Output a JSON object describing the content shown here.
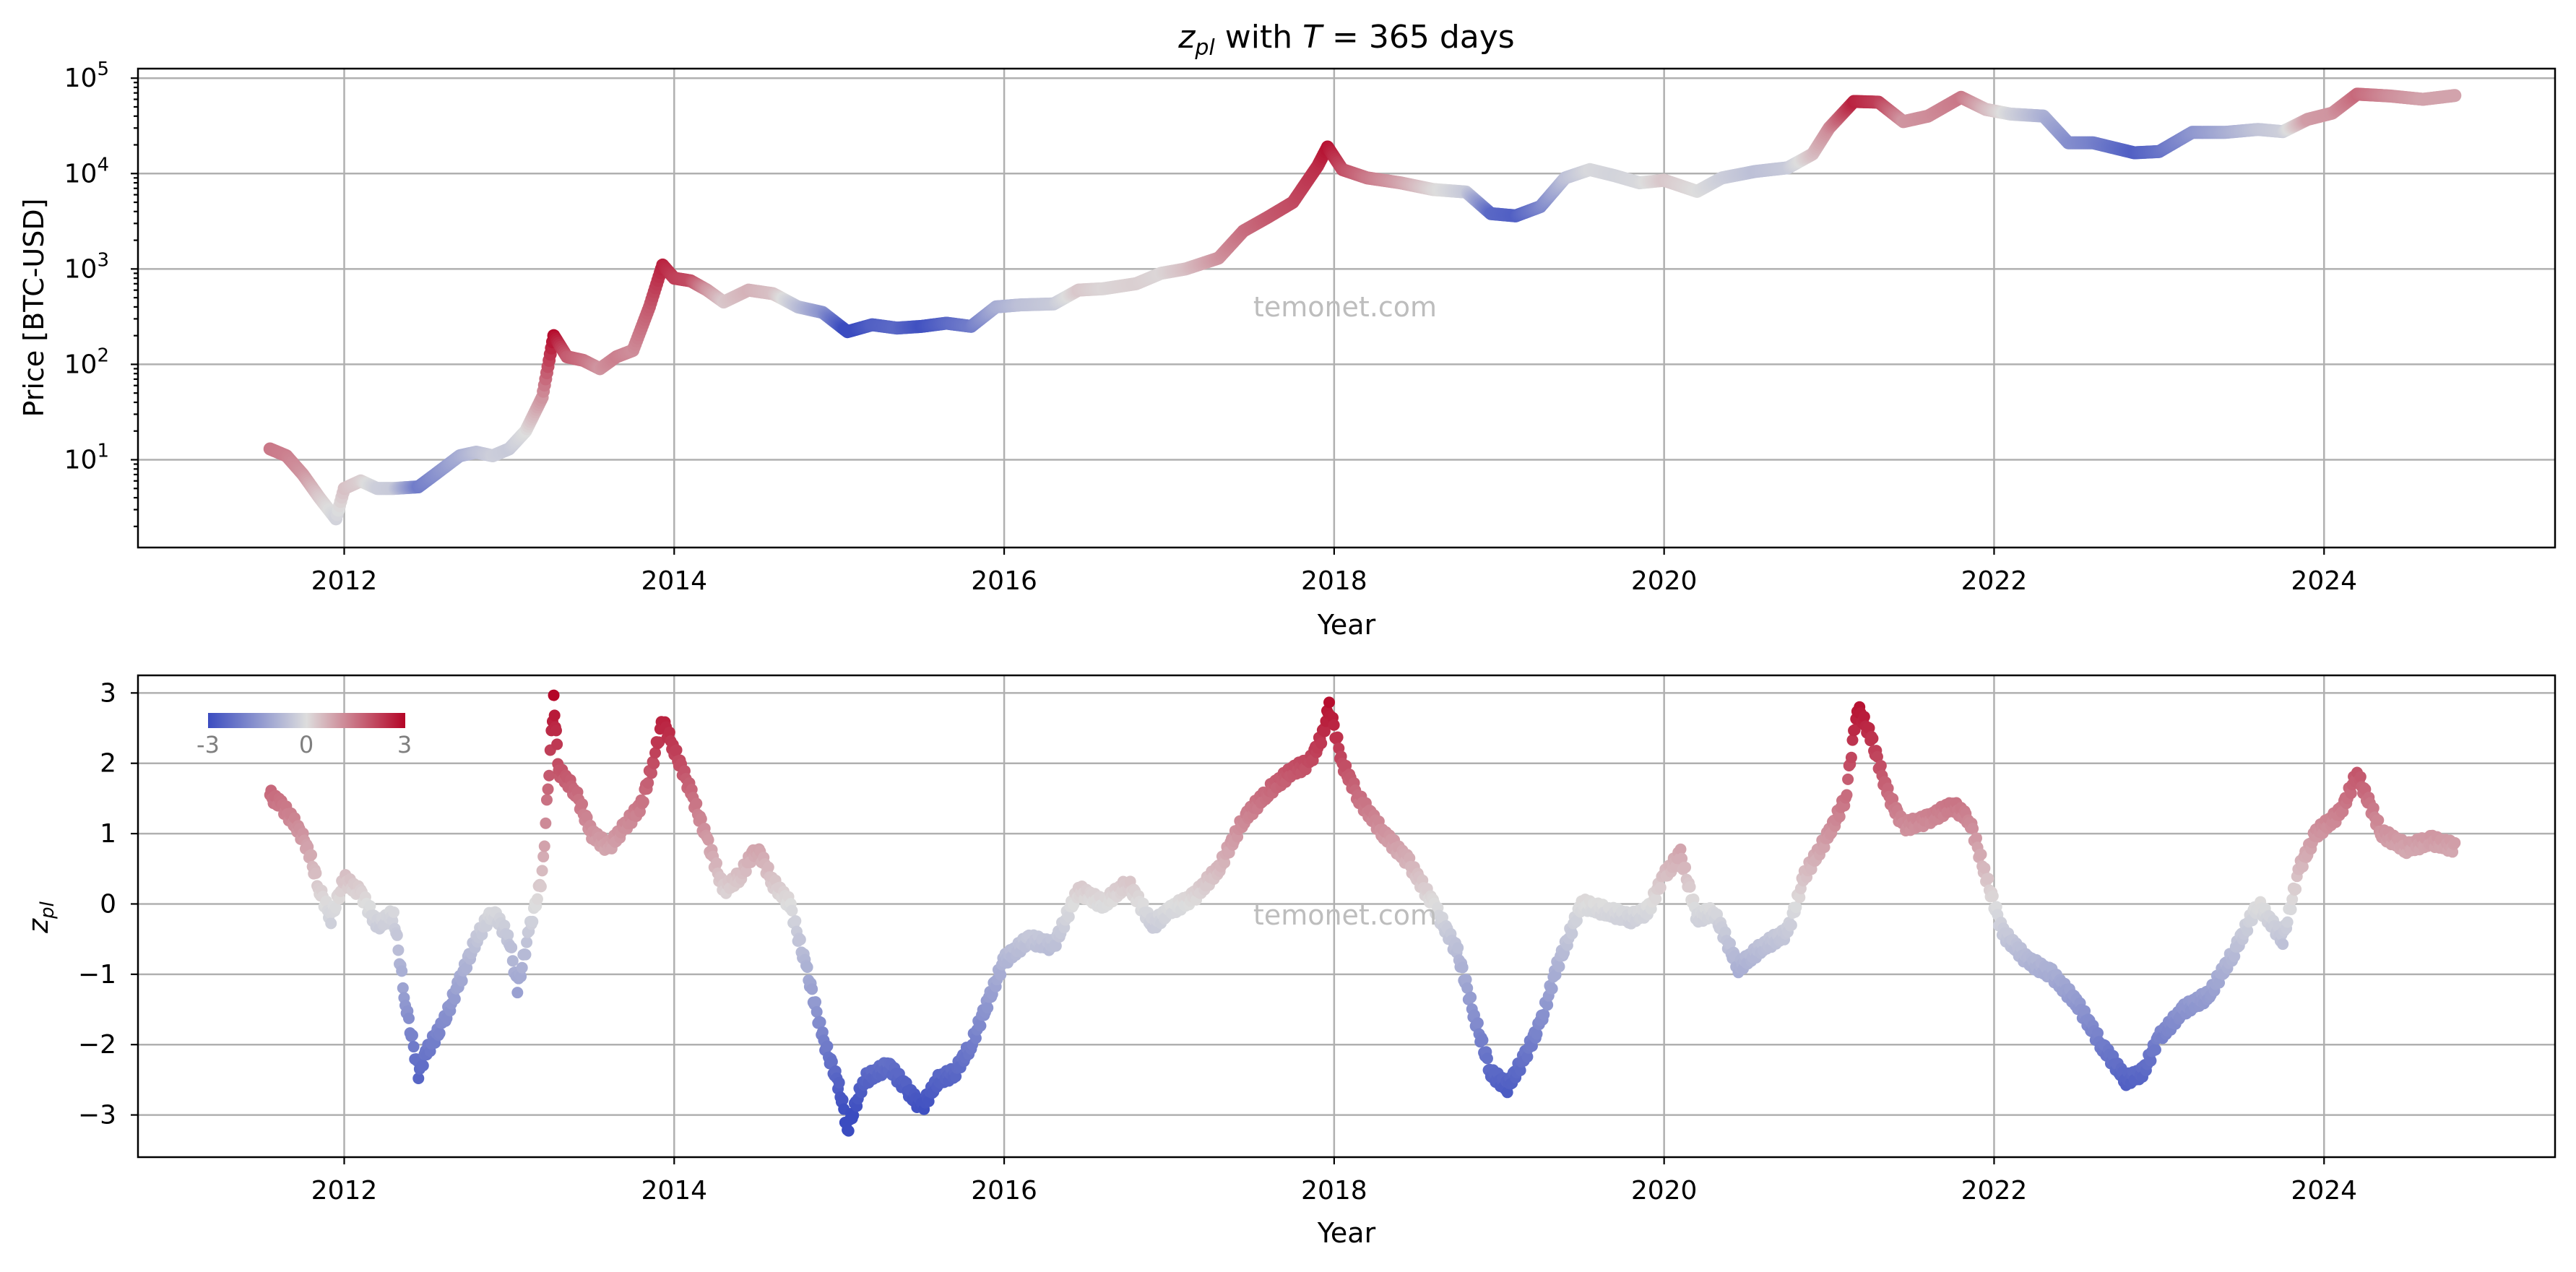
{
  "figure_title": "with",
  "title_math": {
    "z": "z",
    "z_sub": "pl",
    "T": "T",
    "equals": " = 365 days"
  },
  "watermark": "temonet.com",
  "colorscale": {
    "min_color": "#3b4cc0",
    "mid_color": "#dddddd",
    "max_color": "#b40426",
    "tick_labels": [
      "-3",
      "0",
      "3"
    ]
  },
  "chart_data": [
    {
      "type": "scatter",
      "panel": "price",
      "xlabel": "Year",
      "ylabel": "Price [BTC-USD]",
      "yscale": "log",
      "xlim": [
        2010.75,
        2025.4
      ],
      "ylim_log10": [
        0.08,
        5.1
      ],
      "x_ticks": [
        2012,
        2014,
        2016,
        2018,
        2020,
        2022,
        2024
      ],
      "y_ticks": [
        {
          "value": 10,
          "base": "10",
          "exp": "1"
        },
        {
          "value": 100,
          "base": "10",
          "exp": "2"
        },
        {
          "value": 1000,
          "base": "10",
          "exp": "3"
        },
        {
          "value": 10000,
          "base": "10",
          "exp": "4"
        },
        {
          "value": 100000,
          "base": "10",
          "exp": "5"
        }
      ],
      "grid": true,
      "color_by": "z_pl",
      "points": [
        [
          2011.55,
          13,
          1.4
        ],
        [
          2011.65,
          11,
          1.3
        ],
        [
          2011.75,
          7,
          1.0
        ],
        [
          2011.85,
          4,
          0.3
        ],
        [
          2011.95,
          2.4,
          -0.2
        ],
        [
          2012.0,
          5,
          0.4
        ],
        [
          2012.1,
          6,
          0.2
        ],
        [
          2012.2,
          5,
          -0.3
        ],
        [
          2012.3,
          5,
          -0.4
        ],
        [
          2012.45,
          5.2,
          -2.0
        ],
        [
          2012.55,
          7,
          -1.6
        ],
        [
          2012.7,
          11,
          -1.0
        ],
        [
          2012.8,
          12,
          -0.6
        ],
        [
          2012.9,
          11,
          -0.3
        ],
        [
          2013.0,
          13,
          -0.4
        ],
        [
          2013.1,
          20,
          0.0
        ],
        [
          2013.2,
          45,
          1.0
        ],
        [
          2013.27,
          200,
          2.9
        ],
        [
          2013.35,
          120,
          1.8
        ],
        [
          2013.45,
          110,
          1.5
        ],
        [
          2013.55,
          90,
          1.0
        ],
        [
          2013.65,
          120,
          1.3
        ],
        [
          2013.75,
          140,
          1.1
        ],
        [
          2013.85,
          400,
          1.8
        ],
        [
          2013.93,
          1100,
          2.6
        ],
        [
          2014.0,
          800,
          2.2
        ],
        [
          2014.1,
          750,
          2.0
        ],
        [
          2014.2,
          600,
          1.0
        ],
        [
          2014.3,
          450,
          0.3
        ],
        [
          2014.45,
          600,
          0.6
        ],
        [
          2014.6,
          550,
          0.4
        ],
        [
          2014.75,
          400,
          -0.6
        ],
        [
          2014.9,
          350,
          -1.5
        ],
        [
          2015.05,
          220,
          -3.2
        ],
        [
          2015.2,
          260,
          -2.6
        ],
        [
          2015.35,
          240,
          -2.4
        ],
        [
          2015.5,
          250,
          -2.9
        ],
        [
          2015.65,
          270,
          -2.4
        ],
        [
          2015.8,
          250,
          -2.0
        ],
        [
          2015.95,
          400,
          -1.0
        ],
        [
          2016.1,
          420,
          -0.6
        ],
        [
          2016.3,
          430,
          -0.4
        ],
        [
          2016.45,
          600,
          0.3
        ],
        [
          2016.6,
          620,
          0.1
        ],
        [
          2016.8,
          700,
          0.2
        ],
        [
          2016.95,
          900,
          0.1
        ],
        [
          2017.1,
          1000,
          0.4
        ],
        [
          2017.3,
          1300,
          1.0
        ],
        [
          2017.45,
          2500,
          1.5
        ],
        [
          2017.6,
          3500,
          1.8
        ],
        [
          2017.75,
          5000,
          2.0
        ],
        [
          2017.9,
          12000,
          2.4
        ],
        [
          2017.96,
          19000,
          2.8
        ],
        [
          2018.05,
          11000,
          2.0
        ],
        [
          2018.2,
          9000,
          1.4
        ],
        [
          2018.4,
          8000,
          0.8
        ],
        [
          2018.6,
          6800,
          0.1
        ],
        [
          2018.8,
          6400,
          -0.4
        ],
        [
          2018.95,
          3800,
          -2.4
        ],
        [
          2019.1,
          3600,
          -2.6
        ],
        [
          2019.25,
          4500,
          -1.8
        ],
        [
          2019.4,
          9000,
          -0.6
        ],
        [
          2019.55,
          11000,
          -0.1
        ],
        [
          2019.7,
          9500,
          -0.2
        ],
        [
          2019.85,
          8000,
          -0.1
        ],
        [
          2020.0,
          8500,
          0.3
        ],
        [
          2020.2,
          6500,
          0.0
        ],
        [
          2020.35,
          9000,
          -0.3
        ],
        [
          2020.55,
          10500,
          -0.6
        ],
        [
          2020.75,
          11500,
          -0.4
        ],
        [
          2020.9,
          16000,
          0.4
        ],
        [
          2021.0,
          30000,
          1.1
        ],
        [
          2021.15,
          57000,
          2.6
        ],
        [
          2021.3,
          56000,
          2.2
        ],
        [
          2021.45,
          35000,
          1.0
        ],
        [
          2021.6,
          40000,
          1.1
        ],
        [
          2021.8,
          63000,
          1.4
        ],
        [
          2021.95,
          47000,
          0.5
        ],
        [
          2022.1,
          42000,
          -0.2
        ],
        [
          2022.3,
          40000,
          -0.9
        ],
        [
          2022.45,
          21000,
          -1.6
        ],
        [
          2022.6,
          21000,
          -1.9
        ],
        [
          2022.85,
          16500,
          -2.6
        ],
        [
          2023.0,
          17000,
          -2.2
        ],
        [
          2023.2,
          27000,
          -1.5
        ],
        [
          2023.4,
          27000,
          -1.0
        ],
        [
          2023.6,
          29000,
          -0.5
        ],
        [
          2023.75,
          27500,
          -0.3
        ],
        [
          2023.9,
          37000,
          0.9
        ],
        [
          2024.05,
          43000,
          1.0
        ],
        [
          2024.2,
          68000,
          1.6
        ],
        [
          2024.4,
          65000,
          1.1
        ],
        [
          2024.6,
          60000,
          0.8
        ],
        [
          2024.8,
          66000,
          0.8
        ]
      ]
    },
    {
      "type": "scatter",
      "panel": "zscore",
      "xlabel": "Year",
      "ylabel": "z",
      "ylabel_sub": "pl",
      "xlim": [
        2010.75,
        2025.4
      ],
      "ylim": [
        -3.6,
        3.25
      ],
      "x_ticks": [
        2012,
        2014,
        2016,
        2018,
        2020,
        2022,
        2024
      ],
      "y_ticks": [
        3,
        2,
        1,
        0,
        -1,
        -2,
        -3
      ],
      "y_tick_labels": [
        "3",
        "2",
        "1",
        "0",
        "−1",
        "−2",
        "−3"
      ],
      "grid": true,
      "points": [
        [
          2011.55,
          1.55
        ],
        [
          2011.62,
          1.4
        ],
        [
          2011.7,
          1.15
        ],
        [
          2011.78,
          0.8
        ],
        [
          2011.85,
          0.2
        ],
        [
          2011.92,
          -0.2
        ],
        [
          2012.0,
          0.35
        ],
        [
          2012.1,
          0.15
        ],
        [
          2012.2,
          -0.3
        ],
        [
          2012.3,
          -0.15
        ],
        [
          2012.37,
          -1.4
        ],
        [
          2012.45,
          -2.4
        ],
        [
          2012.5,
          -2.1
        ],
        [
          2012.6,
          -1.7
        ],
        [
          2012.7,
          -1.1
        ],
        [
          2012.8,
          -0.5
        ],
        [
          2012.9,
          -0.1
        ],
        [
          2013.0,
          -0.5
        ],
        [
          2013.05,
          -1.2
        ],
        [
          2013.12,
          -0.4
        ],
        [
          2013.2,
          0.4
        ],
        [
          2013.27,
          2.9
        ],
        [
          2013.3,
          1.9
        ],
        [
          2013.4,
          1.6
        ],
        [
          2013.5,
          1.0
        ],
        [
          2013.6,
          0.8
        ],
        [
          2013.7,
          1.1
        ],
        [
          2013.8,
          1.4
        ],
        [
          2013.87,
          2.0
        ],
        [
          2013.93,
          2.6
        ],
        [
          2014.0,
          2.2
        ],
        [
          2014.1,
          1.6
        ],
        [
          2014.2,
          0.9
        ],
        [
          2014.3,
          0.2
        ],
        [
          2014.4,
          0.4
        ],
        [
          2014.5,
          0.8
        ],
        [
          2014.6,
          0.3
        ],
        [
          2014.7,
          0.0
        ],
        [
          2014.8,
          -0.9
        ],
        [
          2014.9,
          -1.9
        ],
        [
          2015.0,
          -2.6
        ],
        [
          2015.05,
          -3.2
        ],
        [
          2015.15,
          -2.5
        ],
        [
          2015.3,
          -2.3
        ],
        [
          2015.4,
          -2.6
        ],
        [
          2015.5,
          -2.9
        ],
        [
          2015.6,
          -2.5
        ],
        [
          2015.7,
          -2.4
        ],
        [
          2015.8,
          -2.0
        ],
        [
          2015.9,
          -1.4
        ],
        [
          2016.0,
          -0.8
        ],
        [
          2016.15,
          -0.5
        ],
        [
          2016.3,
          -0.6
        ],
        [
          2016.45,
          0.2
        ],
        [
          2016.6,
          0.0
        ],
        [
          2016.75,
          0.3
        ],
        [
          2016.9,
          -0.3
        ],
        [
          2017.0,
          -0.1
        ],
        [
          2017.15,
          0.1
        ],
        [
          2017.3,
          0.5
        ],
        [
          2017.45,
          1.2
        ],
        [
          2017.6,
          1.6
        ],
        [
          2017.75,
          1.9
        ],
        [
          2017.85,
          2.0
        ],
        [
          2017.93,
          2.4
        ],
        [
          2017.97,
          2.8
        ],
        [
          2018.05,
          2.0
        ],
        [
          2018.15,
          1.5
        ],
        [
          2018.3,
          1.0
        ],
        [
          2018.45,
          0.6
        ],
        [
          2018.6,
          0.0
        ],
        [
          2018.75,
          -0.7
        ],
        [
          2018.85,
          -1.6
        ],
        [
          2018.95,
          -2.4
        ],
        [
          2019.05,
          -2.6
        ],
        [
          2019.15,
          -2.2
        ],
        [
          2019.25,
          -1.7
        ],
        [
          2019.35,
          -0.9
        ],
        [
          2019.5,
          0.0
        ],
        [
          2019.65,
          -0.1
        ],
        [
          2019.8,
          -0.2
        ],
        [
          2019.9,
          -0.1
        ],
        [
          2020.0,
          0.4
        ],
        [
          2020.1,
          0.7
        ],
        [
          2020.2,
          -0.2
        ],
        [
          2020.3,
          -0.1
        ],
        [
          2020.45,
          -0.9
        ],
        [
          2020.6,
          -0.6
        ],
        [
          2020.75,
          -0.4
        ],
        [
          2020.85,
          0.4
        ],
        [
          2021.0,
          1.0
        ],
        [
          2021.1,
          1.5
        ],
        [
          2021.17,
          2.8
        ],
        [
          2021.25,
          2.4
        ],
        [
          2021.35,
          1.6
        ],
        [
          2021.45,
          1.1
        ],
        [
          2021.6,
          1.2
        ],
        [
          2021.75,
          1.4
        ],
        [
          2021.85,
          1.2
        ],
        [
          2021.95,
          0.4
        ],
        [
          2022.05,
          -0.4
        ],
        [
          2022.2,
          -0.8
        ],
        [
          2022.35,
          -1.0
        ],
        [
          2022.5,
          -1.4
        ],
        [
          2022.65,
          -2.0
        ],
        [
          2022.8,
          -2.5
        ],
        [
          2022.9,
          -2.4
        ],
        [
          2023.0,
          -1.9
        ],
        [
          2023.15,
          -1.5
        ],
        [
          2023.3,
          -1.3
        ],
        [
          2023.45,
          -0.7
        ],
        [
          2023.6,
          0.0
        ],
        [
          2023.75,
          -0.5
        ],
        [
          2023.85,
          0.5
        ],
        [
          2023.95,
          1.0
        ],
        [
          2024.1,
          1.3
        ],
        [
          2024.2,
          1.85
        ],
        [
          2024.35,
          1.0
        ],
        [
          2024.5,
          0.8
        ],
        [
          2024.65,
          0.9
        ],
        [
          2024.8,
          0.8
        ]
      ]
    }
  ]
}
